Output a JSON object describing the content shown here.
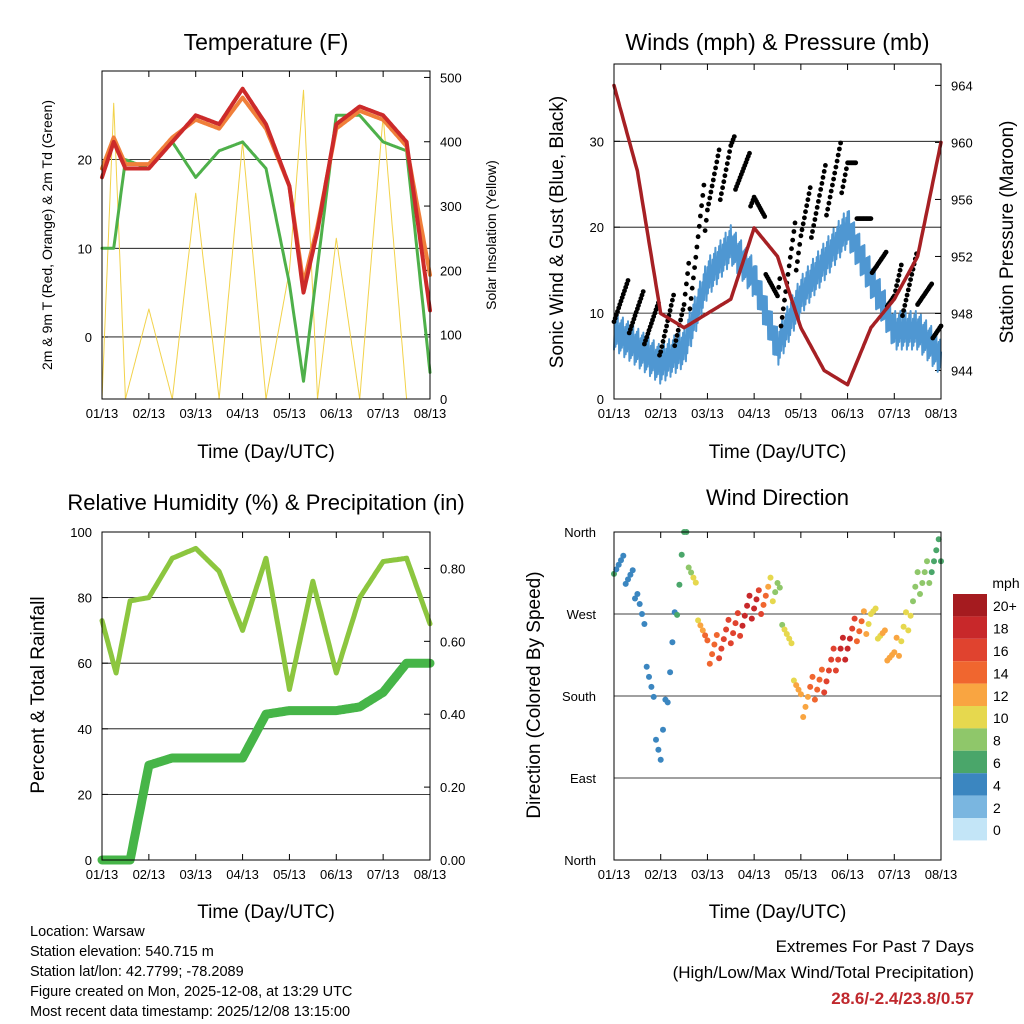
{
  "x_tick_labels": [
    "01/13",
    "02/13",
    "03/13",
    "04/13",
    "05/13",
    "06/13",
    "07/13",
    "08/13"
  ],
  "temperature": {
    "title": "Temperature (F)",
    "xlabel": "Time (Day/UTC)",
    "ylabel_left": "2m & 9m T (Red, Orange) & 2m Td (Green)",
    "ylabel_right": "Solar Insolation (Yellow)",
    "left_ticks": [
      "20",
      "10",
      "0"
    ],
    "right_ticks": [
      "500",
      "400",
      "300",
      "200",
      "100",
      "0"
    ]
  },
  "winds": {
    "title": "Winds (mph) & Pressure (mb)",
    "xlabel": "Time (Day/UTC)",
    "ylabel_left": "Sonic Wind & Gust (Blue, Black)",
    "ylabel_right": "Station Pressure (Maroon)",
    "left_ticks": [
      "30",
      "20",
      "10",
      "0"
    ],
    "right_ticks": [
      "964",
      "960",
      "956",
      "952",
      "948",
      "944"
    ]
  },
  "humidity": {
    "title": "Relative Humidity (%) & Precipitation (in)",
    "xlabel": "Time (Day/UTC)",
    "ylabel_left": "Percent & Total Rainfall",
    "left_ticks": [
      "100",
      "80",
      "60",
      "40",
      "20",
      "0"
    ],
    "right_ticks": [
      "0.80",
      "0.60",
      "0.40",
      "0.20",
      "0.00"
    ]
  },
  "direction": {
    "title": "Wind Direction",
    "xlabel": "Time (Day/UTC)",
    "ylabel_left": "Direction (Colored By Speed)",
    "dir_labels": [
      "North",
      "West",
      "South",
      "East",
      "North"
    ],
    "legend_title": "mph",
    "legend_labels": [
      "20+",
      "18",
      "16",
      "14",
      "12",
      "10",
      "8",
      "6",
      "4",
      "2",
      "0"
    ],
    "legend_colors": [
      "#a51b1f",
      "#c8282a",
      "#e0432f",
      "#f0662f",
      "#f9a541",
      "#e6d84e",
      "#8fc76a",
      "#4aa66a",
      "#3b86c0",
      "#7ab6e0",
      "#c3e5f7"
    ]
  },
  "info": {
    "location": "Location: Warsaw",
    "elevation": "Station elevation: 540.715 m",
    "latlon": "Station lat/lon: 42.7799; -78.2089",
    "created": "Figure created on Mon, 2025-12-08, at 13:29 UTC",
    "recent": "Most recent data timestamp: 2025/12/08 13:15:00"
  },
  "extremes": {
    "line1": "Extremes For Past 7 Days",
    "line2": "(High/Low/Max Wind/Total Precipitation)",
    "values": "28.6/-2.4/23.8/0.57"
  },
  "chart_data": [
    {
      "type": "line",
      "title": "Temperature (F)",
      "x": [
        0,
        0.25,
        0.5,
        1,
        1.5,
        2,
        2.5,
        3,
        3.5,
        4,
        4.3,
        4.6,
        5,
        5.5,
        6,
        6.5,
        7
      ],
      "series": [
        {
          "name": "2m T (Red)",
          "values": [
            18,
            22,
            19,
            19,
            22,
            25,
            24,
            28,
            24,
            17,
            5,
            12,
            24,
            26,
            25,
            22,
            3
          ]
        },
        {
          "name": "9m T (Orange)",
          "values": [
            19,
            22.5,
            19.5,
            19.5,
            22.5,
            24.5,
            23.5,
            27,
            23.5,
            17,
            6,
            12.5,
            23.5,
            25.5,
            24.5,
            21.5,
            7
          ]
        },
        {
          "name": "2m Td (Green)",
          "values": [
            10,
            10,
            20,
            19,
            22,
            18,
            21,
            22,
            19,
            6,
            -5,
            8,
            25,
            25,
            22,
            21,
            -4
          ]
        },
        {
          "name": "Solar Insolation (Yellow)",
          "axis": "right",
          "values": [
            0,
            460,
            0,
            140,
            0,
            320,
            0,
            400,
            0,
            200,
            480,
            0,
            250,
            0,
            440,
            0,
            0
          ]
        }
      ],
      "xlabel": "Time (Day/UTC)",
      "ylabel": "2m & 9m T (Red, Orange) & 2m Td (Green)",
      "ylim": [
        -7,
        30
      ],
      "y2label": "Solar Insolation (Yellow)",
      "y2lim": [
        0,
        510
      ]
    },
    {
      "type": "line",
      "title": "Winds (mph) & Pressure (mb)",
      "x": [
        0,
        0.5,
        1,
        1.5,
        2,
        2.5,
        3,
        3.5,
        4,
        4.5,
        5,
        5.5,
        6,
        6.5,
        7
      ],
      "series": [
        {
          "name": "Sonic Wind (Blue)",
          "values": [
            8,
            6,
            4,
            6,
            14,
            18,
            14,
            6,
            12,
            16,
            20,
            14,
            8,
            8,
            5
          ]
        },
        {
          "name": "Gust (Black)",
          "values": [
            12,
            10,
            8,
            10,
            24,
            28,
            25,
            10,
            20,
            24,
            28,
            18,
            12,
            14,
            8
          ]
        },
        {
          "name": "Station Pressure (Maroon)",
          "axis": "right",
          "values": [
            964,
            958,
            948,
            947,
            948,
            949,
            954,
            952,
            947,
            944,
            943,
            947,
            949,
            952,
            960
          ]
        }
      ],
      "xlabel": "Time (Day/UTC)",
      "ylabel": "Sonic Wind & Gust (Blue, Black)",
      "ylim": [
        0,
        39
      ],
      "y2label": "Station Pressure (Maroon)",
      "y2lim": [
        942,
        965.5
      ]
    },
    {
      "type": "line",
      "title": "Relative Humidity (%) & Precipitation (in)",
      "x": [
        0,
        0.3,
        0.6,
        1,
        1.5,
        2,
        2.5,
        3,
        3.5,
        4,
        4.5,
        5,
        5.5,
        6,
        6.5,
        7
      ],
      "series": [
        {
          "name": "Relative Humidity (%)",
          "values": [
            73,
            57,
            79,
            80,
            92,
            95,
            88,
            70,
            92,
            52,
            85,
            57,
            80,
            91,
            92,
            72
          ]
        },
        {
          "name": "Total Precipitation (in)",
          "axis": "right",
          "values": [
            0,
            0,
            0,
            0.26,
            0.28,
            0.28,
            0.28,
            0.28,
            0.4,
            0.41,
            0.41,
            0.41,
            0.42,
            0.46,
            0.54,
            0.54
          ]
        }
      ],
      "xlabel": "Time (Day/UTC)",
      "ylabel": "Percent & Total Rainfall",
      "ylim": [
        0,
        100
      ],
      "y2lim": [
        0,
        0.9
      ]
    },
    {
      "type": "scatter",
      "title": "Wind Direction",
      "x": [
        0,
        0.5,
        1,
        1.5,
        2,
        2.5,
        3,
        3.5,
        4,
        4.5,
        5,
        5.5,
        6,
        6.5,
        7
      ],
      "series": [
        {
          "name": "Direction (deg)",
          "values": [
            330,
            300,
            110,
            360,
            225,
            250,
            280,
            300,
            170,
            200,
            240,
            270,
            220,
            300,
            340
          ]
        },
        {
          "name": "Speed (mph)",
          "values": [
            5,
            4,
            3,
            6,
            14,
            16,
            18,
            8,
            12,
            15,
            18,
            10,
            12,
            8,
            6
          ]
        }
      ],
      "xlabel": "Time (Day/UTC)",
      "ylabel": "Direction (Colored By Speed)",
      "ylim": [
        0,
        360
      ]
    }
  ]
}
